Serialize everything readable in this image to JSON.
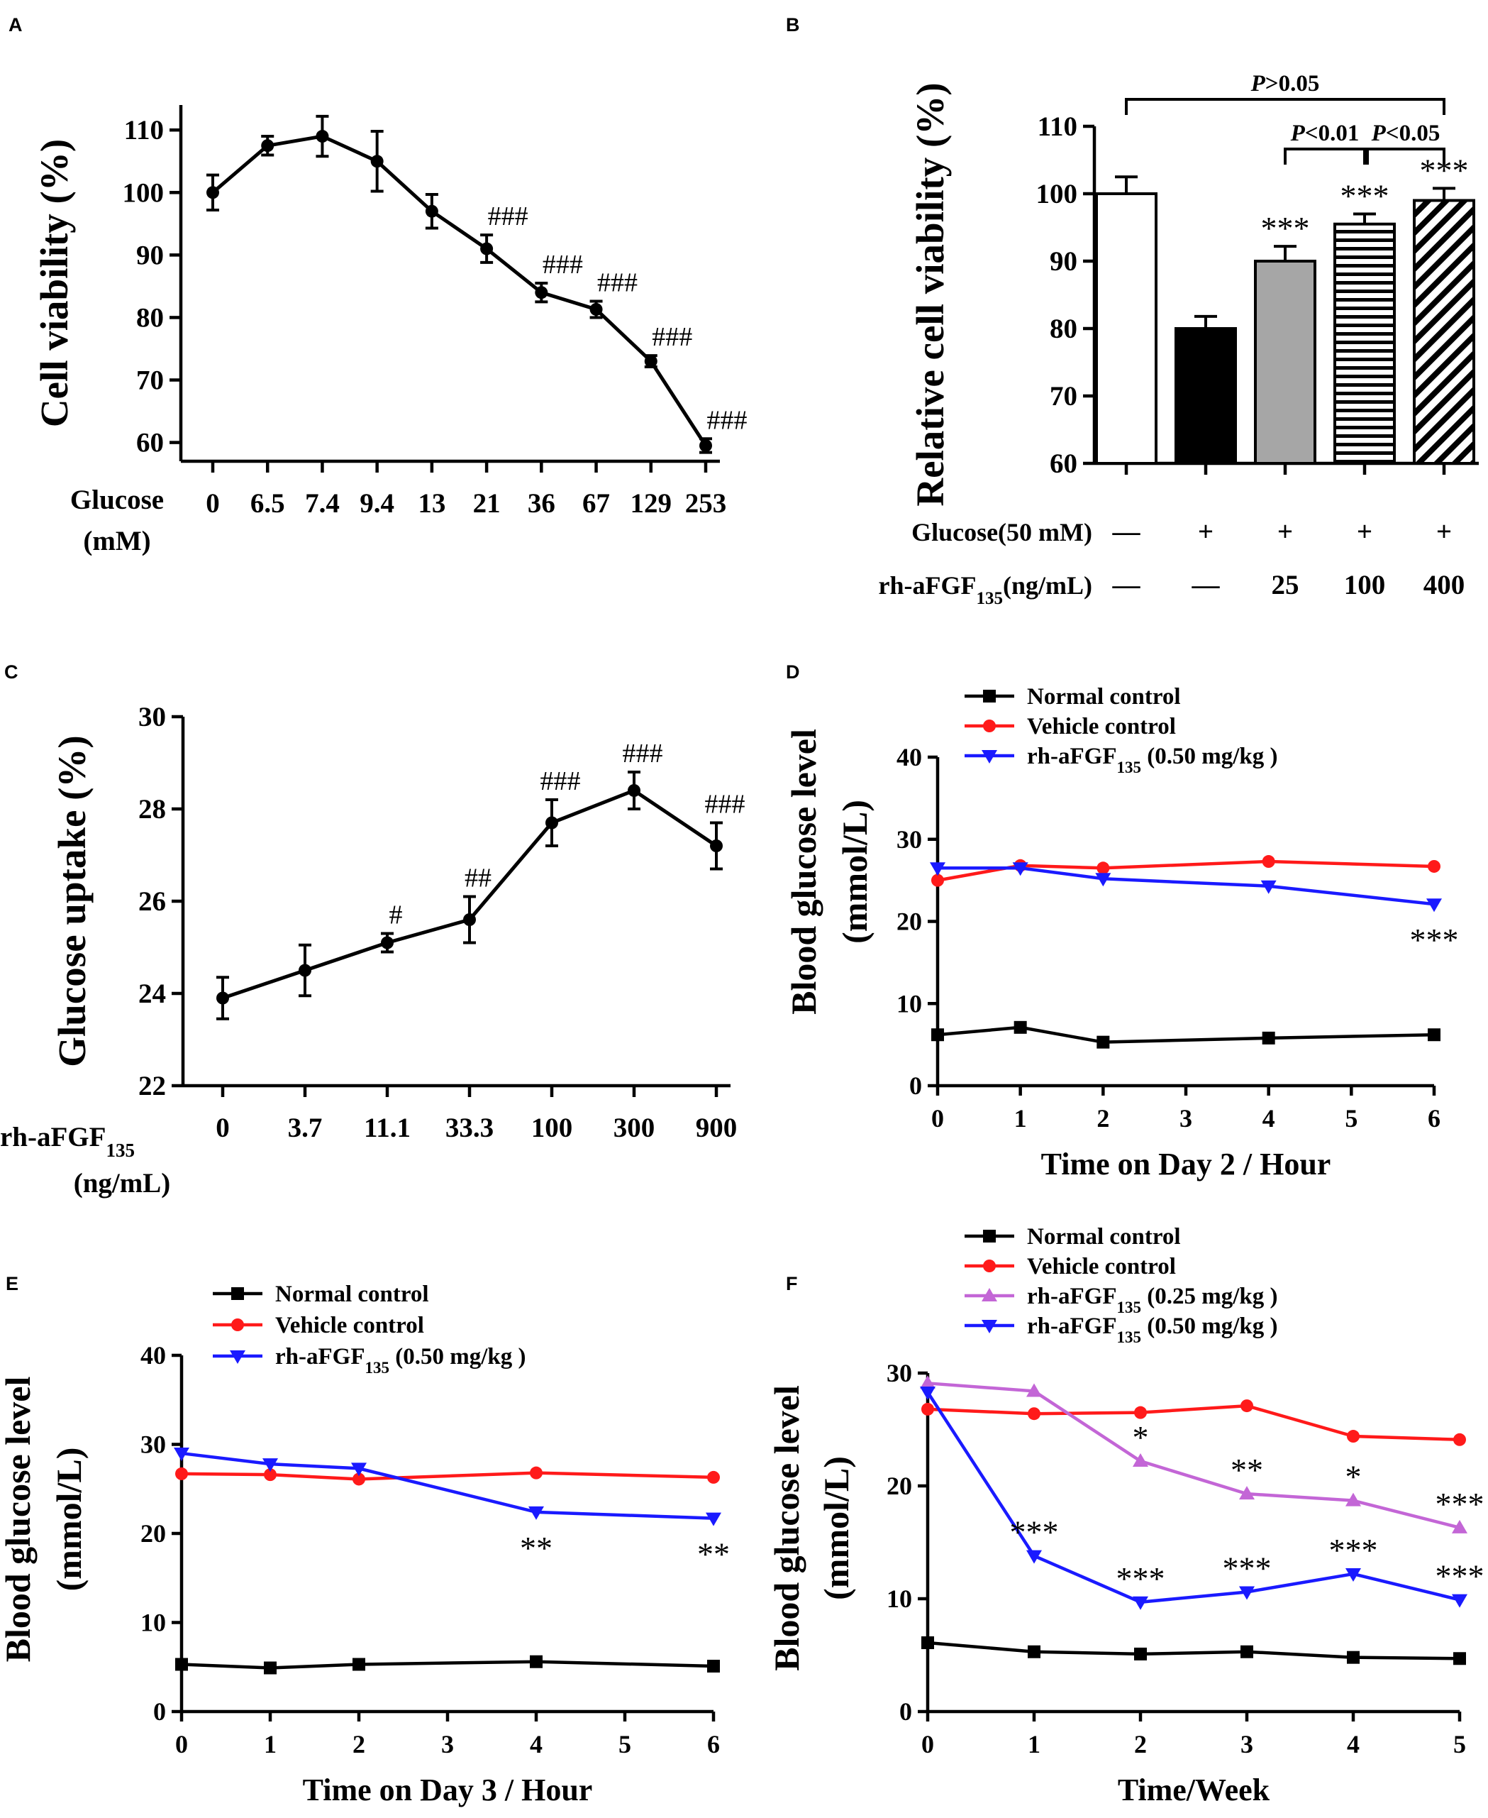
{
  "chart_data": [
    {
      "id": "A",
      "panel_label": "A",
      "type": "line",
      "ylabel": "Cell viability (%)",
      "ylim": [
        57,
        114
      ],
      "yticks": [
        60,
        70,
        80,
        90,
        100,
        110
      ],
      "xlabel_lines": [
        "Glucose",
        "(mM)"
      ],
      "categories": [
        "0",
        "6.5",
        "7.4",
        "9.4",
        "13",
        "21",
        "36",
        "67",
        "129",
        "253"
      ],
      "values": [
        100,
        107.5,
        109,
        105,
        97,
        91,
        84,
        81.3,
        73,
        59.5
      ],
      "errors": [
        2.8,
        1.5,
        3.2,
        4.8,
        2.7,
        2.2,
        1.5,
        1.3,
        0.9,
        1.1
      ],
      "annotations": [
        "",
        "",
        "",
        "",
        "",
        "###",
        "###",
        "###",
        "###",
        "###"
      ]
    },
    {
      "id": "B",
      "panel_label": "B",
      "type": "bar",
      "ylabel": "Relative cell viability (%)",
      "ylim": [
        60,
        110
      ],
      "yticks": [
        60,
        70,
        80,
        90,
        100,
        110
      ],
      "values": [
        100,
        80,
        90,
        95.5,
        99
      ],
      "errors": [
        2.5,
        1.8,
        2.2,
        1.5,
        1.8
      ],
      "fills": [
        "white",
        "black",
        "gray",
        "horizontal-stripes",
        "diagonal-stripes"
      ],
      "stars": [
        "",
        "",
        "***",
        "***",
        "***"
      ],
      "row_labels": [
        {
          "label": "Glucose(50 mM)",
          "values": [
            "—",
            "+",
            "+",
            "+",
            "+"
          ]
        },
        {
          "label": "rh-aFGF",
          "subscript": "135",
          "suffix": "(ng/mL)",
          "values": [
            "—",
            "—",
            "25",
            "100",
            "400"
          ]
        }
      ],
      "brackets": [
        {
          "from": 0,
          "to": 4,
          "p": "P",
          "text": ">0.05"
        },
        {
          "from": 2,
          "to": 3,
          "p": "P",
          "text": "<0.01"
        },
        {
          "from": 3,
          "to": 4,
          "p": "P",
          "text": "<0.05"
        }
      ]
    },
    {
      "id": "C",
      "panel_label": "C",
      "type": "line",
      "ylabel": "Glucose uptake (%)",
      "ylim": [
        22,
        30
      ],
      "yticks": [
        22,
        24,
        26,
        28,
        30
      ],
      "xlabel_lines": [
        "rh-aFGF",
        "(ng/mL)"
      ],
      "xlabel_subscript": "135",
      "categories": [
        "0",
        "3.7",
        "11.1",
        "33.3",
        "100",
        "300",
        "900"
      ],
      "values": [
        23.9,
        24.5,
        25.1,
        25.6,
        27.7,
        28.4,
        27.2
      ],
      "errors": [
        0.45,
        0.55,
        0.2,
        0.5,
        0.5,
        0.4,
        0.5
      ],
      "annotations": [
        "",
        "",
        "#",
        "##",
        "###",
        "###",
        "###"
      ]
    },
    {
      "id": "D",
      "panel_label": "D",
      "type": "line",
      "ylabel_lines": [
        "Blood glucose level",
        "(mmol/L)"
      ],
      "xlabel": "Time on Day 2 / Hour",
      "xlim": [
        0,
        6
      ],
      "ylim": [
        0,
        40
      ],
      "xticks": [
        0,
        1,
        2,
        3,
        4,
        5,
        6
      ],
      "yticks": [
        0,
        10,
        20,
        30,
        40
      ],
      "x": [
        0,
        1,
        2,
        4,
        6
      ],
      "series": [
        {
          "name": "Normal control",
          "color": "#000000",
          "marker": "square",
          "values": [
            6.2,
            7.1,
            5.3,
            5.8,
            6.2
          ]
        },
        {
          "name": "Vehicle control",
          "color": "#ff1a1a",
          "marker": "circle",
          "values": [
            25,
            26.8,
            26.5,
            27.3,
            26.7
          ]
        },
        {
          "name": "rh-aFGF",
          "name_sub": "135",
          "name_suffix": " (0.50 mg/kg )",
          "color": "#1a1aff",
          "marker": "triangle-down",
          "values": [
            26.5,
            26.5,
            25.2,
            24.3,
            22.1
          ]
        }
      ],
      "stars": [
        {
          "x": 6,
          "y": 22.1,
          "text": "***"
        }
      ]
    },
    {
      "id": "E",
      "panel_label": "E",
      "type": "line",
      "ylabel_lines": [
        "Blood glucose level",
        "(mmol/L)"
      ],
      "xlabel": "Time on Day 3 / Hour",
      "xlim": [
        0,
        6
      ],
      "ylim": [
        0,
        40
      ],
      "xticks": [
        0,
        1,
        2,
        3,
        4,
        5,
        6
      ],
      "yticks": [
        0,
        10,
        20,
        30,
        40
      ],
      "x": [
        0,
        1,
        2,
        4,
        6
      ],
      "series": [
        {
          "name": "Normal control",
          "color": "#000000",
          "marker": "square",
          "values": [
            5.3,
            4.9,
            5.3,
            5.6,
            5.1
          ]
        },
        {
          "name": "Vehicle control",
          "color": "#ff1a1a",
          "marker": "circle",
          "values": [
            26.7,
            26.6,
            26.1,
            26.8,
            26.3
          ]
        },
        {
          "name": "rh-aFGF",
          "name_sub": "135",
          "name_suffix": " (0.50 mg/kg )",
          "color": "#1a1aff",
          "marker": "triangle-down",
          "values": [
            29,
            27.8,
            27.3,
            22.4,
            21.7
          ]
        }
      ],
      "stars": [
        {
          "x": 4,
          "y": 22.4,
          "text": "**"
        },
        {
          "x": 6,
          "y": 21.7,
          "text": "**"
        }
      ]
    },
    {
      "id": "F",
      "panel_label": "F",
      "type": "line",
      "ylabel_lines": [
        "Blood glucose level",
        "(mmol/L)"
      ],
      "xlabel": "Time/Week",
      "xlim": [
        0,
        5
      ],
      "ylim": [
        0,
        30
      ],
      "xticks": [
        0,
        1,
        2,
        3,
        4,
        5
      ],
      "yticks": [
        0,
        10,
        20,
        30
      ],
      "x": [
        0,
        1,
        2,
        3,
        4,
        5
      ],
      "series": [
        {
          "name": "Normal control",
          "color": "#000000",
          "marker": "square",
          "values": [
            6.1,
            5.3,
            5.1,
            5.3,
            4.8,
            4.7
          ]
        },
        {
          "name": "Vehicle control",
          "color": "#ff1a1a",
          "marker": "circle",
          "values": [
            26.8,
            26.4,
            26.5,
            27.1,
            24.4,
            24.1
          ]
        },
        {
          "name": "rh-aFGF",
          "name_sub": "135",
          "name_suffix": " (0.25 mg/kg )",
          "color": "#c366d6",
          "marker": "triangle-up",
          "values": [
            29.1,
            28.4,
            22.2,
            19.3,
            18.7,
            16.3
          ]
        },
        {
          "name": "rh-aFGF",
          "name_sub": "135",
          "name_suffix": " (0.50 mg/kg )",
          "color": "#1a1aff",
          "marker": "triangle-down",
          "values": [
            28.3,
            13.8,
            9.7,
            10.6,
            12.2,
            9.9
          ]
        }
      ],
      "stars": [
        {
          "x": 2,
          "y": 22.2,
          "text": "*"
        },
        {
          "x": 3,
          "y": 19.3,
          "text": "**"
        },
        {
          "x": 4,
          "y": 18.7,
          "text": "*"
        },
        {
          "x": 5,
          "y": 16.3,
          "text": "***"
        },
        {
          "x": 1,
          "y": 13.8,
          "text": "***"
        },
        {
          "x": 2,
          "y": 9.7,
          "text": "***"
        },
        {
          "x": 3,
          "y": 10.6,
          "text": "***"
        },
        {
          "x": 4,
          "y": 12.2,
          "text": "***"
        },
        {
          "x": 5,
          "y": 9.9,
          "text": "***"
        }
      ]
    }
  ]
}
